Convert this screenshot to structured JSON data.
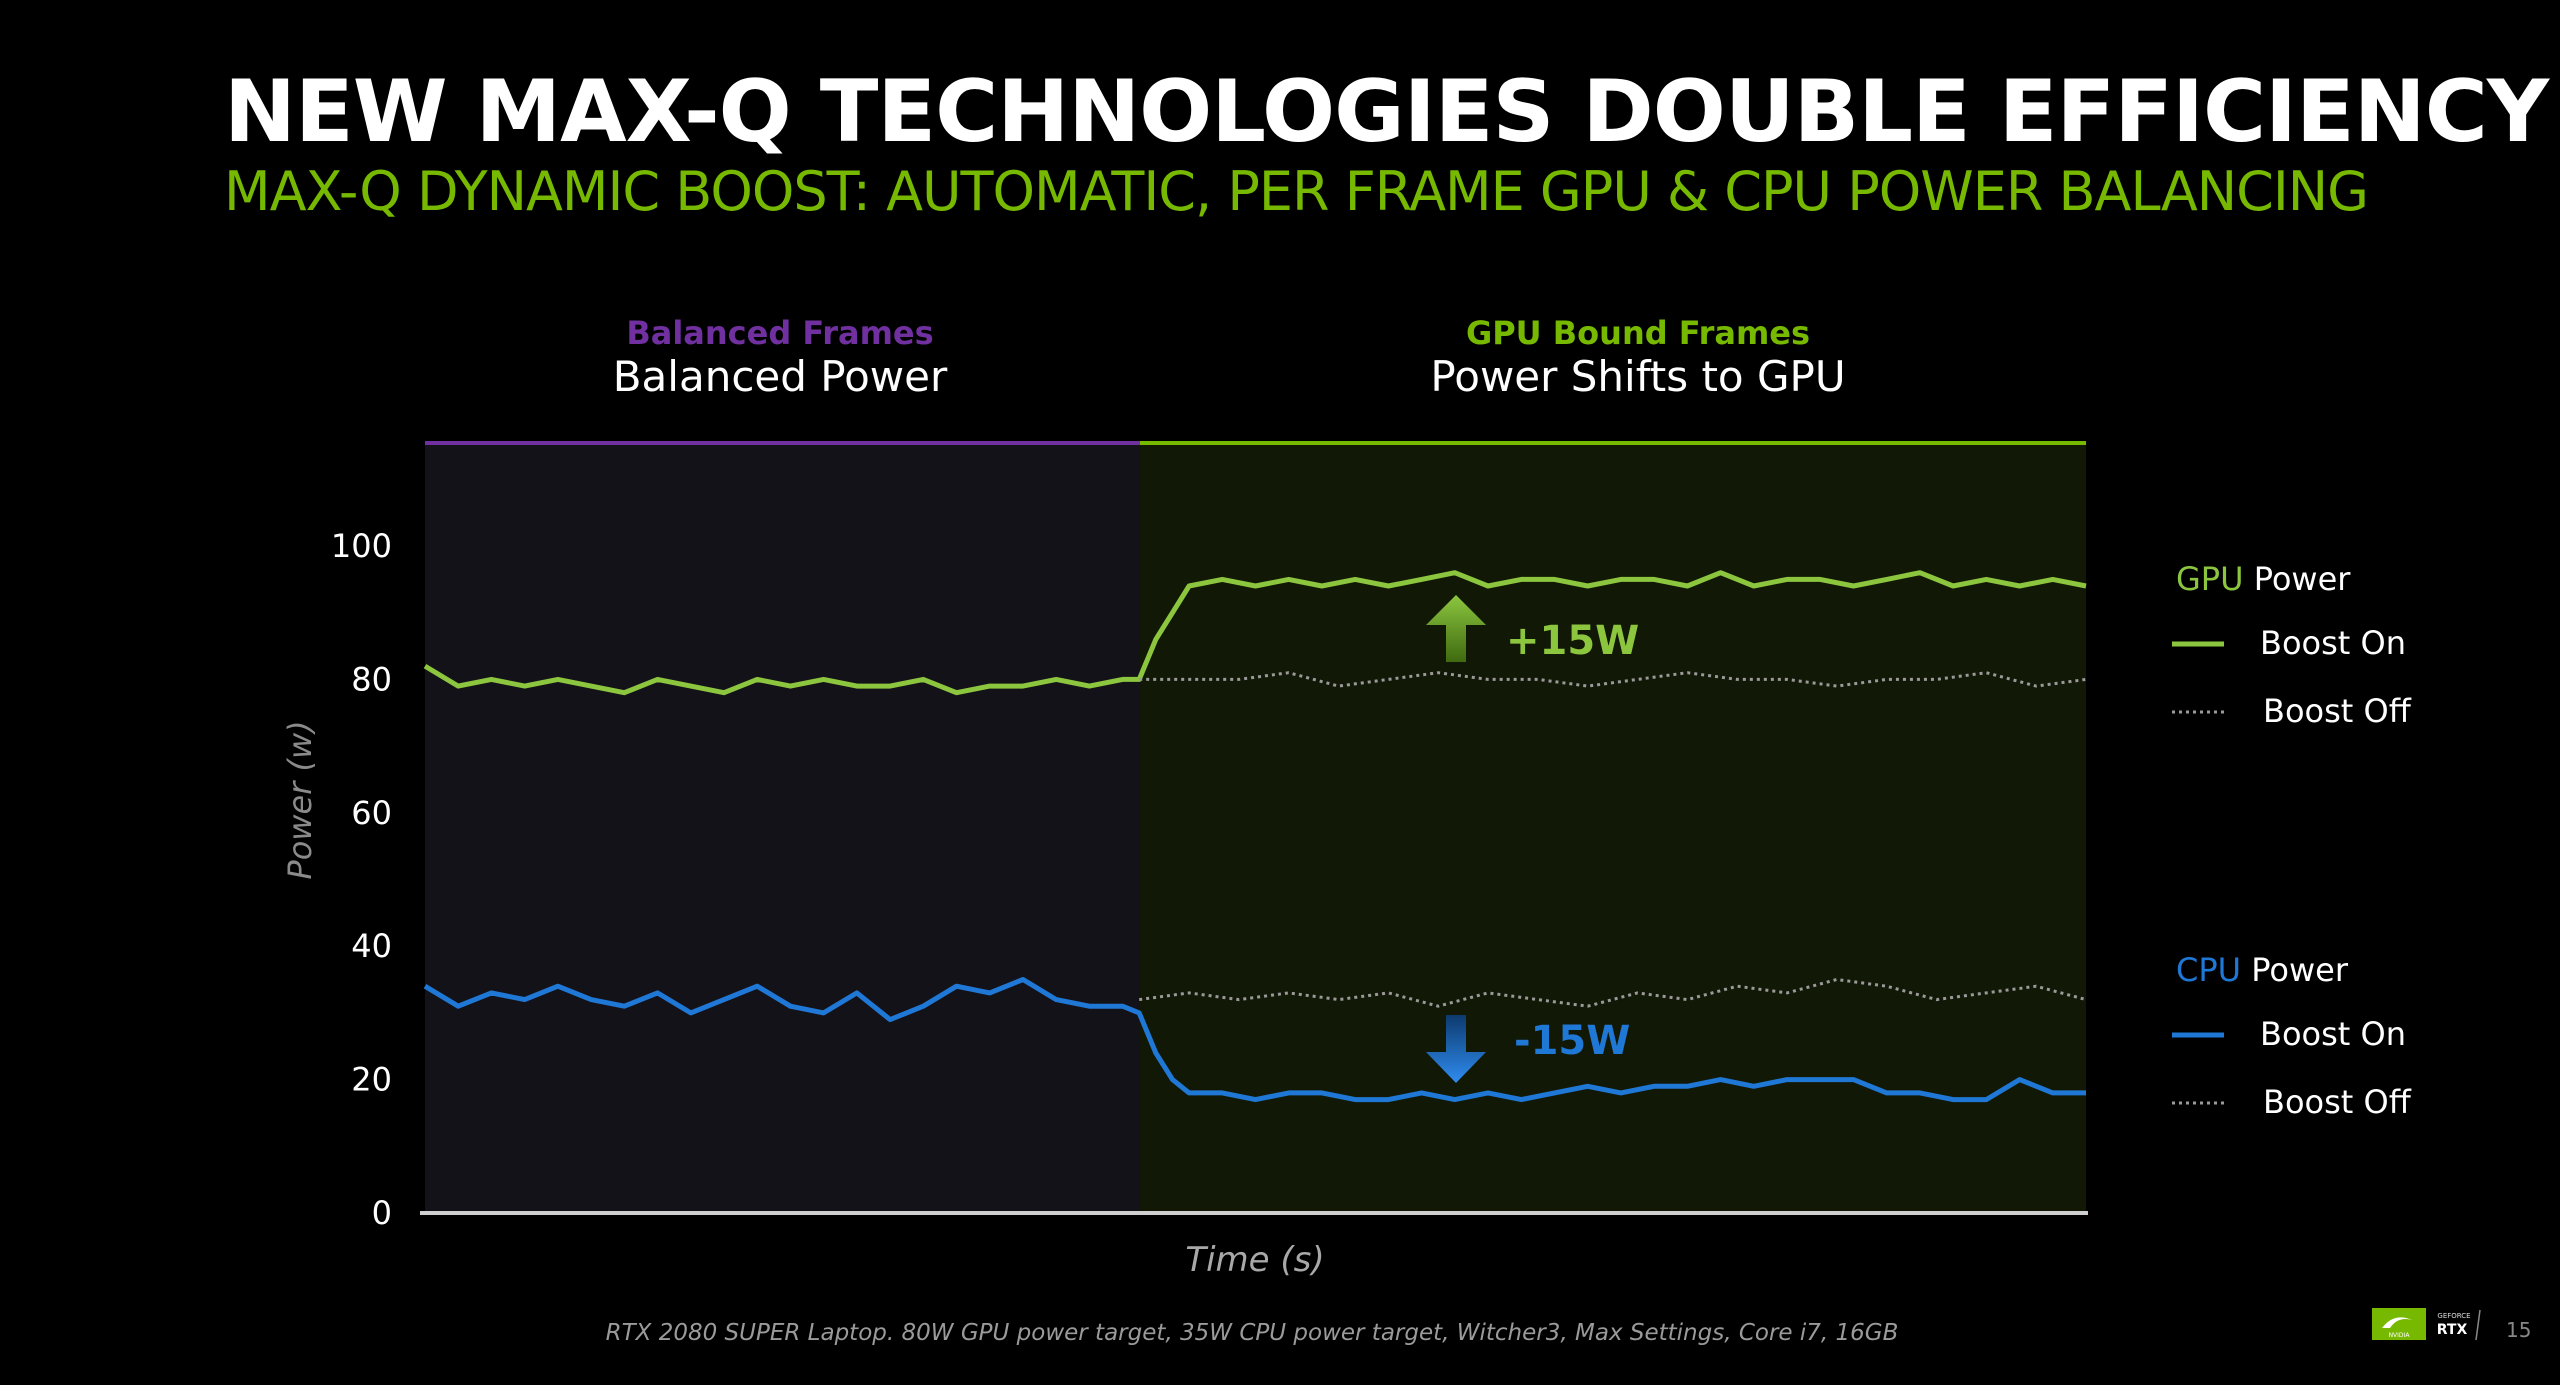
{
  "header": {
    "title": "NEW MAX-Q TECHNOLOGIES DOUBLE EFFICIENCY",
    "subtitle": "MAX-Q DYNAMIC BOOST: AUTOMATIC, PER FRAME GPU & CPU POWER BALANCING"
  },
  "sections": {
    "left": {
      "small": "Balanced Frames",
      "big": "Balanced Power",
      "color": "#7030a0"
    },
    "right": {
      "small": "GPU Bound Frames",
      "big": "Power Shifts to GPU",
      "color": "#76b900"
    }
  },
  "legend": {
    "gpu_prefix": "GPU",
    "gpu_suffix": " Power",
    "cpu_prefix": "CPU",
    "cpu_suffix": " Power",
    "boost_on": "Boost On",
    "boost_off": "Boost Off"
  },
  "annotations": {
    "gpu_delta": "+15W",
    "cpu_delta": "-15W"
  },
  "footnote": "RTX 2080 SUPER Laptop. 80W GPU power target, 35W CPU power target, Witcher3, Max Settings, Core i7, 16GB",
  "page_number": "15",
  "logo": {
    "brand": "NVIDIA",
    "line1": "GEFORCE",
    "line2": "RTX"
  },
  "colors": {
    "gpu": "#8cc63f",
    "cpu": "#1f78d6",
    "off": "#9a9a9a",
    "nvidia_green": "#76b900",
    "purple": "#7030a0"
  },
  "chart_data": {
    "type": "line",
    "xlabel": "Time (s)",
    "ylabel": "Power (w)",
    "ylim": [
      0,
      115
    ],
    "yticks": [
      0,
      20,
      40,
      60,
      80,
      100
    ],
    "xlim": [
      0,
      100
    ],
    "grid": false,
    "legend_position": "right",
    "regions": [
      {
        "name": "Balanced Frames",
        "x_start": 0,
        "x_end": 43
      },
      {
        "name": "GPU Bound Frames",
        "x_start": 43,
        "x_end": 100
      }
    ],
    "series": [
      {
        "name": "GPU Power Boost On",
        "style": "solid",
        "x": [
          0,
          2,
          4,
          6,
          8,
          10,
          12,
          14,
          16,
          18,
          20,
          22,
          24,
          26,
          28,
          30,
          32,
          34,
          36,
          38,
          40,
          42,
          43,
          44,
          45,
          46,
          48,
          50,
          52,
          54,
          56,
          58,
          60,
          62,
          64,
          66,
          68,
          70,
          72,
          74,
          76,
          78,
          80,
          82,
          84,
          86,
          88,
          90,
          92,
          94,
          96,
          98,
          100
        ],
        "y": [
          82,
          79,
          80,
          79,
          80,
          79,
          78,
          80,
          79,
          78,
          80,
          79,
          80,
          79,
          79,
          80,
          78,
          79,
          79,
          80,
          79,
          80,
          80,
          86,
          90,
          94,
          95,
          94,
          95,
          94,
          95,
          94,
          95,
          96,
          94,
          95,
          95,
          94,
          95,
          95,
          94,
          96,
          94,
          95,
          95,
          94,
          95,
          96,
          94,
          95,
          94,
          95,
          94
        ]
      },
      {
        "name": "GPU Power Boost Off",
        "style": "dotted",
        "x": [
          43,
          46,
          49,
          52,
          55,
          58,
          61,
          64,
          67,
          70,
          73,
          76,
          79,
          82,
          85,
          88,
          91,
          94,
          97,
          100
        ],
        "y": [
          80,
          80,
          80,
          81,
          79,
          80,
          81,
          80,
          80,
          79,
          80,
          81,
          80,
          80,
          79,
          80,
          80,
          81,
          79,
          80
        ]
      },
      {
        "name": "CPU Power Boost On",
        "style": "solid",
        "x": [
          0,
          2,
          4,
          6,
          8,
          10,
          12,
          14,
          16,
          18,
          20,
          22,
          24,
          26,
          28,
          30,
          32,
          34,
          36,
          38,
          40,
          42,
          43,
          44,
          45,
          46,
          48,
          50,
          52,
          54,
          56,
          58,
          60,
          62,
          64,
          66,
          68,
          70,
          72,
          74,
          76,
          78,
          80,
          82,
          84,
          86,
          88,
          90,
          92,
          94,
          96,
          98,
          100
        ],
        "y": [
          34,
          31,
          33,
          32,
          34,
          32,
          31,
          33,
          30,
          32,
          34,
          31,
          30,
          33,
          29,
          31,
          34,
          33,
          35,
          32,
          31,
          31,
          30,
          24,
          20,
          18,
          18,
          17,
          18,
          18,
          17,
          17,
          18,
          17,
          18,
          17,
          18,
          19,
          18,
          19,
          19,
          20,
          19,
          20,
          20,
          20,
          18,
          18,
          17,
          17,
          20,
          18,
          18
        ]
      },
      {
        "name": "CPU Power Boost Off",
        "style": "dotted",
        "x": [
          43,
          46,
          49,
          52,
          55,
          58,
          61,
          64,
          67,
          70,
          73,
          76,
          79,
          82,
          85,
          88,
          91,
          94,
          97,
          100
        ],
        "y": [
          32,
          33,
          32,
          33,
          32,
          33,
          31,
          33,
          32,
          31,
          33,
          32,
          34,
          33,
          35,
          34,
          32,
          33,
          34,
          32
        ]
      }
    ]
  }
}
